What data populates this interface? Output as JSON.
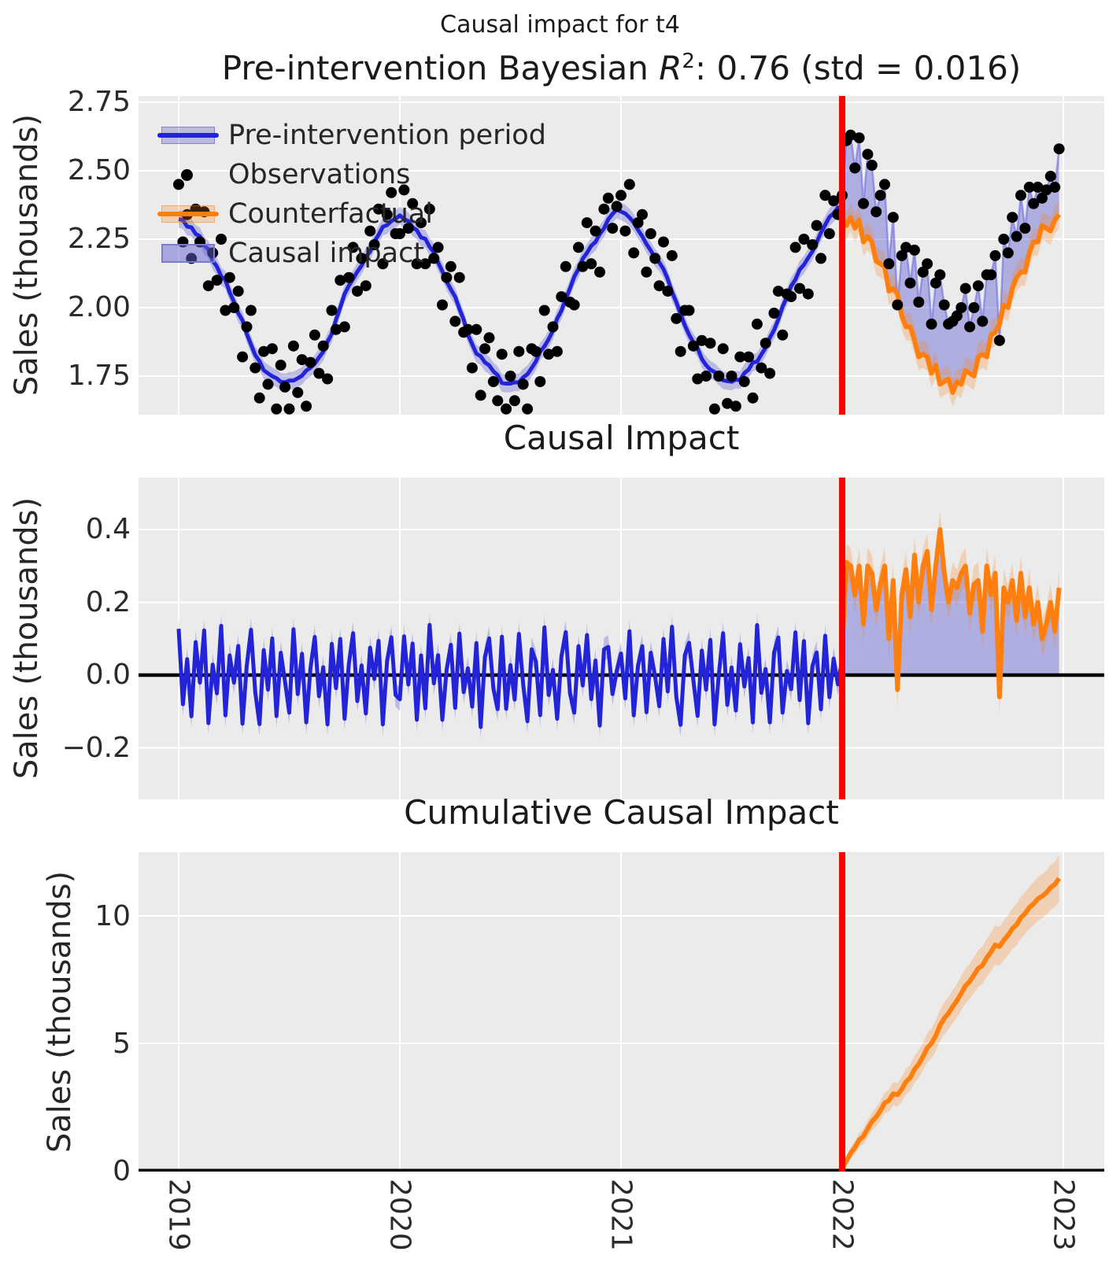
{
  "suptitle": "Causal impact for t4",
  "colors": {
    "plot_background": "#ebebeb",
    "grid": "#ffffff",
    "pre_line_blue": "#2323d8",
    "blue_band": "rgba(60,60,210,0.28)",
    "causal_impact_fill": "rgba(100,100,210,0.45)",
    "post_observation_line": "rgba(100,100,225,0.55)",
    "counterfactual_orange": "#ff7f0e",
    "orange_band": "rgba(255,127,14,0.25)",
    "intervention_red": "#fd0000",
    "observation_dot": "#000000",
    "zero_line": "#000000",
    "text": "#262626"
  },
  "x_axis": {
    "tick_labels": [
      "2019",
      "2020",
      "2021",
      "2022",
      "2023"
    ],
    "tick_years": [
      2019,
      2020,
      2021,
      2022,
      2023
    ],
    "intervention_year": 2022
  },
  "panels": {
    "model": {
      "title": {
        "prefix": "Pre-intervention Bayesian ",
        "rsym": "R",
        "exp": "2",
        "suffix": ": 0.76 (std = 0.016)"
      },
      "ylabel": "Sales (thousands)",
      "ytick_labels": [
        "2.75",
        "2.50",
        "2.25",
        "2.00",
        "1.75"
      ],
      "ytick_values": [
        2.75,
        2.5,
        2.25,
        2.0,
        1.75
      ],
      "ylim": [
        1.609,
        2.773
      ],
      "legend": [
        {
          "label": "Pre-intervention period",
          "swatch": "blue-band-line"
        },
        {
          "label": "Observations",
          "swatch": "black-dot"
        },
        {
          "label": "Counterfactual",
          "swatch": "orange-band-line"
        },
        {
          "label": "Causal impact",
          "swatch": "periwinkle-rect"
        }
      ]
    },
    "impact": {
      "title": "Causal Impact",
      "ylabel": "Sales (thousands)",
      "ytick_labels": [
        "0.4",
        "0.2",
        "0.0",
        "−0.2"
      ],
      "ytick_values": [
        0.4,
        0.2,
        0.0,
        -0.2
      ],
      "ylim": [
        -0.342,
        0.543
      ]
    },
    "cumulative": {
      "title": "Cumulative Causal Impact",
      "ylabel": "Sales (thousands)",
      "ytick_labels": [
        "10",
        "5",
        "0"
      ],
      "ytick_values": [
        10,
        5,
        0
      ],
      "ylim": [
        0,
        12.5
      ]
    }
  },
  "chart_data": [
    {
      "type": "line",
      "panel": "model",
      "x_start_year": 2019,
      "x_step_years": 0.0192308,
      "intervention_index": 156,
      "observations": [
        2.45,
        2.24,
        2.34,
        2.18,
        2.36,
        2.24,
        2.35,
        2.08,
        2.2,
        2.1,
        2.25,
        1.99,
        2.11,
        2.0,
        2.06,
        1.82,
        1.93,
        1.99,
        1.78,
        1.67,
        1.84,
        1.72,
        1.85,
        1.63,
        1.79,
        1.71,
        1.63,
        1.86,
        1.69,
        1.81,
        1.64,
        1.8,
        1.9,
        1.76,
        1.86,
        1.74,
        1.99,
        1.92,
        2.1,
        1.93,
        2.11,
        2.22,
        2.06,
        2.18,
        2.08,
        2.28,
        2.23,
        2.36,
        2.16,
        2.34,
        2.42,
        2.27,
        2.27,
        2.43,
        2.29,
        2.38,
        2.16,
        2.31,
        2.16,
        2.36,
        2.18,
        2.22,
        2.01,
        2.11,
        2.15,
        1.95,
        2.11,
        1.91,
        1.92,
        1.78,
        1.92,
        1.68,
        1.85,
        1.89,
        1.73,
        1.66,
        1.83,
        1.63,
        1.75,
        1.66,
        1.84,
        1.72,
        1.63,
        1.85,
        1.84,
        1.73,
        1.99,
        1.83,
        1.93,
        1.84,
        2.04,
        2.15,
        2.02,
        2.01,
        2.22,
        2.15,
        2.31,
        2.16,
        2.28,
        2.13,
        2.36,
        2.4,
        2.29,
        2.37,
        2.41,
        2.28,
        2.45,
        2.2,
        2.31,
        2.34,
        2.13,
        2.27,
        2.18,
        2.08,
        2.24,
        2.06,
        2.19,
        1.96,
        1.84,
        1.99,
        1.99,
        1.86,
        1.74,
        1.88,
        1.75,
        1.87,
        1.63,
        1.75,
        1.85,
        1.65,
        1.75,
        1.64,
        1.82,
        1.73,
        1.82,
        1.67,
        1.94,
        1.78,
        1.87,
        1.76,
        1.98,
        2.06,
        1.9,
        2.05,
        2.04,
        2.22,
        2.07,
        2.25,
        2.05,
        2.23,
        2.3,
        2.18,
        2.41,
        2.27,
        2.39,
        2.34,
        2.41,
        2.61,
        2.63,
        2.51,
        2.62,
        2.38,
        2.56,
        2.52,
        2.35,
        2.41,
        2.45,
        2.16,
        2.33,
        2.01,
        2.19,
        2.22,
        2.09,
        2.21,
        2.02,
        2.13,
        2.16,
        1.94,
        2.09,
        2.12,
        2.01,
        1.94,
        1.95,
        1.97,
        2.0,
        2.07,
        1.93,
        2.0,
        2.08,
        1.95,
        2.12,
        2.12,
        2.19,
        1.88,
        2.25,
        2.2,
        2.33,
        2.26,
        2.41,
        2.29,
        2.44,
        2.38,
        2.44,
        2.4,
        2.43,
        2.48,
        2.44,
        2.58
      ],
      "counterfactual_mean": [
        2.33,
        2.3,
        2.33,
        2.29,
        2.32,
        2.24,
        2.26,
        2.24,
        2.17,
        2.16,
        2.15,
        2.06,
        2.07,
        2.05,
        1.97,
        1.93,
        1.93,
        1.88,
        1.82,
        1.83,
        1.82,
        1.76,
        1.79,
        1.72,
        1.73,
        1.74,
        1.69,
        1.73,
        1.72,
        1.77,
        1.76,
        1.75,
        1.82,
        1.83,
        1.82,
        1.9,
        1.91,
        1.94,
        2.01,
        2.0,
        2.07,
        2.11,
        2.13,
        2.13,
        2.2,
        2.24,
        2.24,
        2.3,
        2.29,
        2.28,
        2.32,
        2.34
      ],
      "pre_band_halfwidth": 0.032,
      "counterfactual_band_halfwidth": 0.05,
      "note": "pre-intervention mean line = smoothed seasonal fit to observations; causal impact fill spans counterfactual to observations after intervention"
    },
    {
      "type": "line",
      "panel": "impact",
      "post_impact_mean": [
        0.08,
        0.31,
        0.3,
        0.22,
        0.3,
        0.14,
        0.3,
        0.28,
        0.18,
        0.25,
        0.3,
        0.1,
        0.26,
        -0.04,
        0.22,
        0.29,
        0.16,
        0.33,
        0.2,
        0.3,
        0.34,
        0.18,
        0.3,
        0.4,
        0.28,
        0.2,
        0.26,
        0.24,
        0.28,
        0.3,
        0.17,
        0.25,
        0.26,
        0.12,
        0.3,
        0.22,
        0.28,
        -0.06,
        0.24,
        0.2,
        0.26,
        0.15,
        0.28,
        0.16,
        0.24,
        0.14,
        0.2,
        0.1,
        0.14,
        0.2,
        0.12,
        0.24
      ],
      "pre_band_halfwidth": 0.032,
      "post_band_halfwidth": 0.05,
      "note": "pre impact = observations minus model mean; post impact = observations minus counterfactual_mean"
    },
    {
      "type": "line",
      "panel": "cumulative",
      "final_value": 11.47,
      "band_end_halfwidth": 0.9,
      "note": "cumulative sum of post_impact_mean starting at intervention (2022)"
    }
  ]
}
